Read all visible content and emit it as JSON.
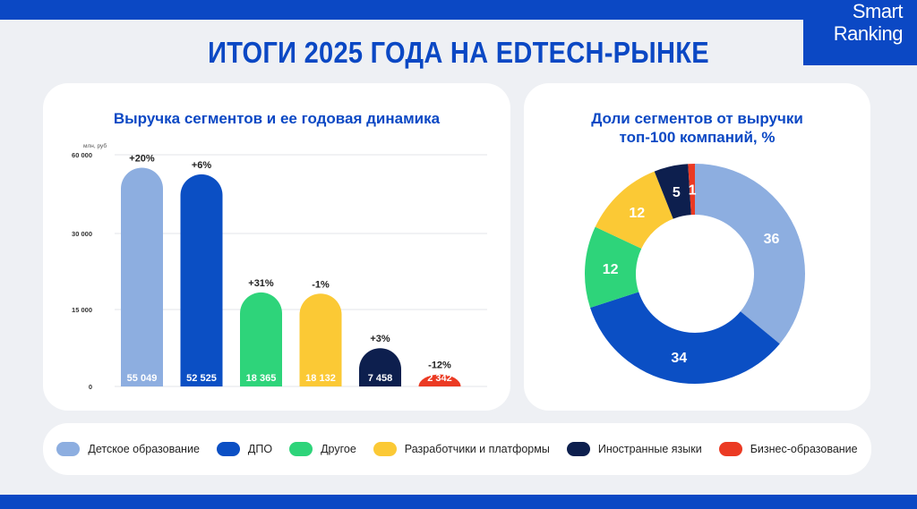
{
  "header": {
    "title": "ИТОГИ 2025 ГОДА НА EDTECH-РЫНКЕ",
    "logo_line1": "Smart",
    "logo_line2": "Ranking"
  },
  "segments": [
    {
      "name": "Детское образование",
      "color": "#8daee0"
    },
    {
      "name": "ДПО",
      "color": "#0b4fc4"
    },
    {
      "name": "Другое",
      "color": "#2ed47a"
    },
    {
      "name": "Разработчики и платформы",
      "color": "#fbc935"
    },
    {
      "name": "Иностранные языки",
      "color": "#0d1f4e"
    },
    {
      "name": "Бизнес-образование",
      "color": "#eb3a23"
    }
  ],
  "bar_chart": {
    "title": "Выручка сегментов и ее годовая динамика",
    "unit_label": "млн, руб"
  },
  "donut_chart": {
    "title_line1": "Доли сегментов от выручки",
    "title_line2": "топ-100 компаний, %"
  },
  "chart_data": [
    {
      "type": "bar",
      "title": "Выручка сегментов и ее годовая динамика",
      "ylabel": "млн, руб",
      "categories": [
        "Детское образование",
        "ДПО",
        "Другое",
        "Разработчики и платформы",
        "Иностранные языки",
        "Бизнес-образование"
      ],
      "values": [
        55049,
        52525,
        18365,
        18132,
        7458,
        2342
      ],
      "value_labels": [
        "55 049",
        "52 525",
        "18 365",
        "18 132",
        "7 458",
        "2 342"
      ],
      "changes": [
        "+20%",
        "+6%",
        "+31%",
        "-1%",
        "+3%",
        "-12%"
      ],
      "yticks": [
        0,
        15000,
        30000,
        60000
      ],
      "ytick_labels": [
        "0",
        "15 000",
        "30 000",
        "60 000"
      ],
      "grid": true
    },
    {
      "type": "pie",
      "title": "Доли сегментов от выручки топ-100 компаний, %",
      "categories": [
        "Детское образование",
        "ДПО",
        "Другое",
        "Разработчики и платформы",
        "Иностранные языки",
        "Бизнес-образование"
      ],
      "values": [
        36,
        34,
        12,
        12,
        5,
        1
      ]
    }
  ]
}
